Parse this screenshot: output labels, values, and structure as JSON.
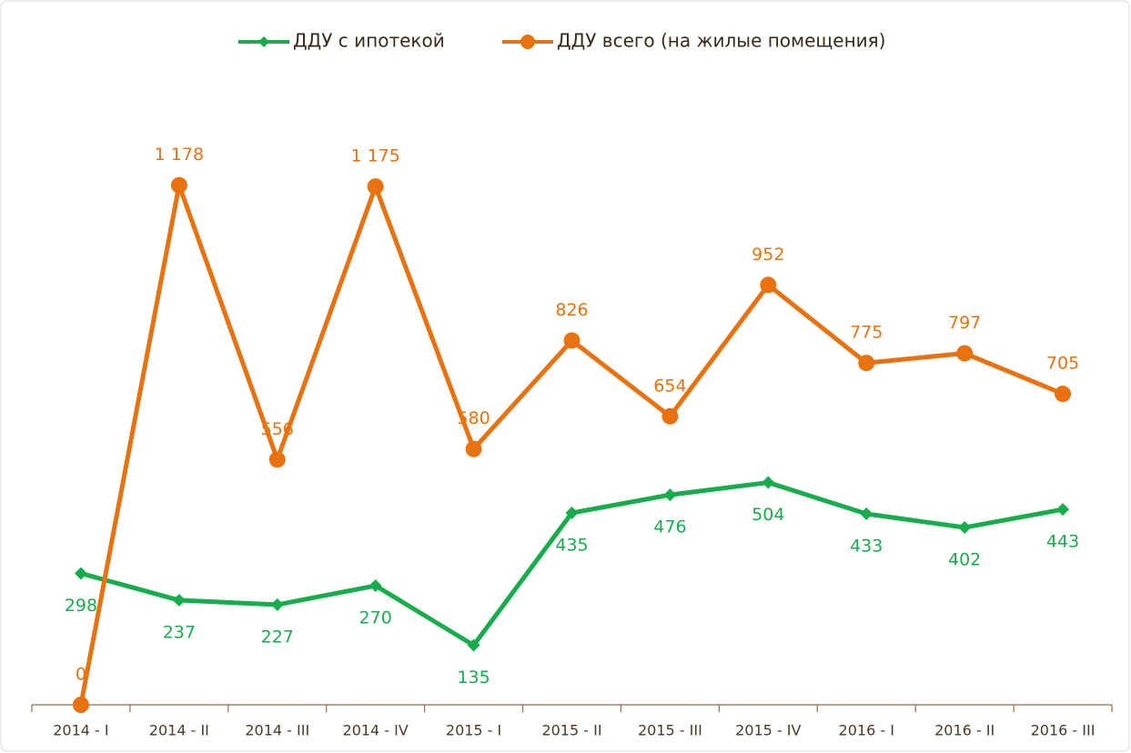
{
  "chart_data": {
    "type": "line",
    "categories": [
      "2014 - I",
      "2014 - II",
      "2014 - III",
      "2014 - IV",
      "2015 - I",
      "2015 - II",
      "2015 - III",
      "2015 - IV",
      "2016 - I",
      "2016 - II",
      "2016 - III"
    ],
    "series": [
      {
        "name": "ДДУ с ипотекой",
        "color": "#17ad4c",
        "marker": "diamond",
        "label_position": "below",
        "values": [
          298,
          237,
          227,
          270,
          135,
          435,
          476,
          504,
          433,
          402,
          443
        ]
      },
      {
        "name": "ДДУ всего (на жилые помещения)",
        "color": "#e8720f",
        "marker": "circle",
        "label_position": "above",
        "values": [
          0,
          1178,
          556,
          1175,
          580,
          826,
          654,
          952,
          775,
          797,
          705
        ],
        "value_labels": [
          "0",
          "1 178",
          "556",
          "1 175",
          "580",
          "826",
          "654",
          "952",
          "775",
          "797",
          "705"
        ]
      }
    ],
    "ylim": [
      0,
      1400
    ],
    "legend": "top"
  }
}
